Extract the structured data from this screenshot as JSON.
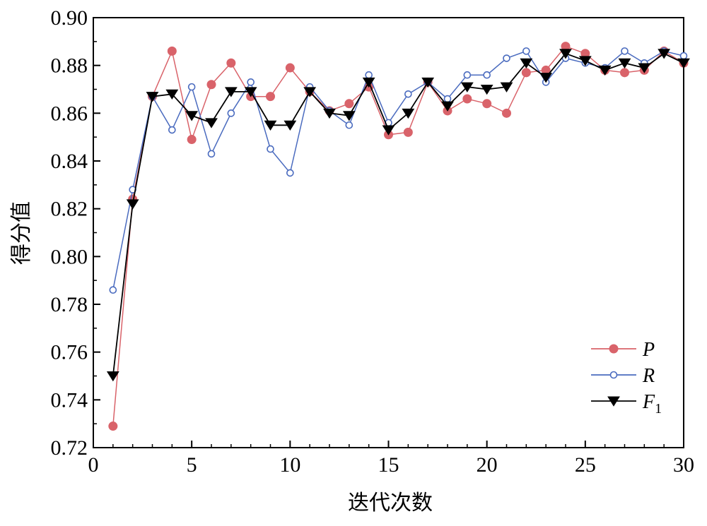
{
  "chart_data": {
    "type": "line",
    "title": "",
    "xlabel": "迭代次数",
    "ylabel": "得分值",
    "xlim": [
      0,
      30
    ],
    "ylim": [
      0.72,
      0.9
    ],
    "x_ticks": [
      "0",
      "5",
      "10",
      "15",
      "20",
      "25",
      "30"
    ],
    "y_ticks": [
      "0.72",
      "0.74",
      "0.76",
      "0.78",
      "0.80",
      "0.82",
      "0.84",
      "0.86",
      "0.88",
      "0.90"
    ],
    "grid": false,
    "legend_position": "bottom-right",
    "x": [
      1,
      2,
      3,
      4,
      5,
      6,
      7,
      8,
      9,
      10,
      11,
      12,
      13,
      14,
      15,
      16,
      17,
      18,
      19,
      20,
      21,
      22,
      23,
      24,
      25,
      26,
      27,
      28,
      29,
      30
    ],
    "series": [
      {
        "name": "P",
        "marker": "filled-circle",
        "color": "#d9636a",
        "values": [
          0.729,
          0.824,
          0.867,
          0.886,
          0.849,
          0.872,
          0.881,
          0.867,
          0.867,
          0.879,
          0.869,
          0.861,
          0.864,
          0.871,
          0.851,
          0.852,
          0.873,
          0.861,
          0.866,
          0.864,
          0.86,
          0.877,
          0.878,
          0.888,
          0.885,
          0.878,
          0.877,
          0.878,
          0.886,
          0.881
        ]
      },
      {
        "name": "R",
        "marker": "open-circle",
        "color": "#4a6bbf",
        "values": [
          0.786,
          0.828,
          0.867,
          0.853,
          0.871,
          0.843,
          0.86,
          0.873,
          0.845,
          0.835,
          0.871,
          0.861,
          0.855,
          0.876,
          0.856,
          0.868,
          0.873,
          0.866,
          0.876,
          0.876,
          0.883,
          0.886,
          0.873,
          0.883,
          0.881,
          0.879,
          0.886,
          0.881,
          0.886,
          0.884
        ]
      },
      {
        "name": "F1",
        "label_main": "F",
        "label_sub": "1",
        "marker": "filled-triangle-down",
        "color": "#000000",
        "values": [
          0.75,
          0.822,
          0.867,
          0.868,
          0.859,
          0.856,
          0.869,
          0.869,
          0.855,
          0.855,
          0.869,
          0.86,
          0.859,
          0.873,
          0.853,
          0.86,
          0.873,
          0.863,
          0.871,
          0.87,
          0.871,
          0.881,
          0.875,
          0.885,
          0.882,
          0.878,
          0.881,
          0.879,
          0.885,
          0.881
        ]
      }
    ]
  }
}
